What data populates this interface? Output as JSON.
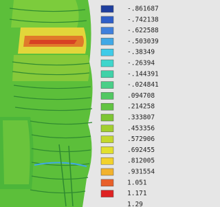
{
  "legend": {
    "labels": [
      "-.861687",
      "-.742138",
      "-.622588",
      "-.503039",
      "-.38349",
      "-.26394",
      "-.144391",
      "-.024841",
      ".094708",
      ".214258",
      ".333807",
      ".453356",
      ".572906",
      ".692455",
      ".812005",
      ".931554",
      "1.051",
      "1.171",
      "1.29"
    ],
    "swatches": [
      "#1f3f9e",
      "#2f5fc8",
      "#3f80dc",
      "#3fa8e6",
      "#3fcbe8",
      "#3fd6cc",
      "#3fd2a8",
      "#4acf88",
      "#52c862",
      "#62c442",
      "#7ec634",
      "#a2cf30",
      "#c4d82e",
      "#e2e02e",
      "#f2d22c",
      "#f2b22c",
      "#e8602a",
      "#de2222"
    ]
  }
}
